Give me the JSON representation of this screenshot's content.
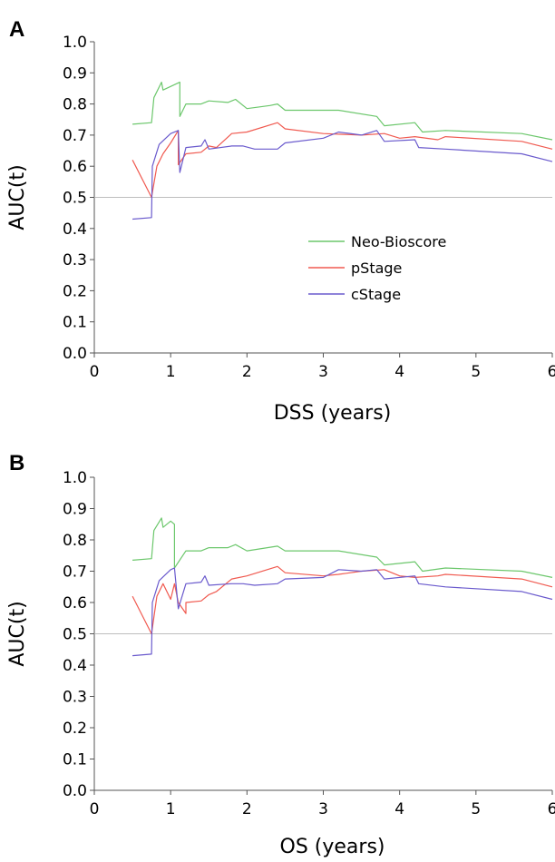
{
  "chart_data": [
    {
      "type": "line",
      "panel_label": "A",
      "xlabel": "DSS (years)",
      "ylabel": "AUC(t)",
      "xlim": [
        0,
        6
      ],
      "ylim": [
        0,
        1
      ],
      "x_ticks": [
        "0",
        "1",
        "2",
        "3",
        "4",
        "5",
        "6"
      ],
      "y_ticks": [
        "0.0",
        "0.1",
        "0.2",
        "0.3",
        "0.4",
        "0.5",
        "0.6",
        "0.7",
        "0.8",
        "0.9",
        "1.0"
      ],
      "reference_line": 0.5,
      "grid": false,
      "legend_position": "right",
      "series": [
        {
          "name": "Neo-Bioscore",
          "color": "#6cc76c",
          "points": [
            [
              0.5,
              0.735
            ],
            [
              0.75,
              0.74
            ],
            [
              0.78,
              0.82
            ],
            [
              0.88,
              0.87
            ],
            [
              0.9,
              0.845
            ],
            [
              1.12,
              0.87
            ],
            [
              1.12,
              0.76
            ],
            [
              1.2,
              0.8
            ],
            [
              1.4,
              0.8
            ],
            [
              1.5,
              0.81
            ],
            [
              1.75,
              0.805
            ],
            [
              1.85,
              0.815
            ],
            [
              2.0,
              0.785
            ],
            [
              2.3,
              0.795
            ],
            [
              2.4,
              0.8
            ],
            [
              2.5,
              0.78
            ],
            [
              3.2,
              0.78
            ],
            [
              3.7,
              0.76
            ],
            [
              3.8,
              0.73
            ],
            [
              4.2,
              0.74
            ],
            [
              4.3,
              0.71
            ],
            [
              4.6,
              0.715
            ],
            [
              5.6,
              0.705
            ],
            [
              6.0,
              0.685
            ]
          ]
        },
        {
          "name": "pStage",
          "color": "#f05a50",
          "points": [
            [
              0.5,
              0.62
            ],
            [
              0.75,
              0.5
            ],
            [
              0.82,
              0.6
            ],
            [
              0.9,
              0.64
            ],
            [
              1.0,
              0.675
            ],
            [
              1.1,
              0.715
            ],
            [
              1.1,
              0.605
            ],
            [
              1.2,
              0.64
            ],
            [
              1.4,
              0.645
            ],
            [
              1.5,
              0.665
            ],
            [
              1.6,
              0.66
            ],
            [
              1.8,
              0.705
            ],
            [
              2.0,
              0.71
            ],
            [
              2.4,
              0.74
            ],
            [
              2.5,
              0.72
            ],
            [
              3.0,
              0.705
            ],
            [
              3.5,
              0.7
            ],
            [
              3.8,
              0.705
            ],
            [
              4.0,
              0.69
            ],
            [
              4.2,
              0.695
            ],
            [
              4.5,
              0.685
            ],
            [
              4.6,
              0.695
            ],
            [
              5.6,
              0.68
            ],
            [
              6.0,
              0.655
            ]
          ]
        },
        {
          "name": "cStage",
          "color": "#6a5acd",
          "points": [
            [
              0.5,
              0.43
            ],
            [
              0.75,
              0.435
            ],
            [
              0.76,
              0.6
            ],
            [
              0.85,
              0.67
            ],
            [
              1.0,
              0.705
            ],
            [
              1.1,
              0.715
            ],
            [
              1.12,
              0.58
            ],
            [
              1.2,
              0.66
            ],
            [
              1.4,
              0.665
            ],
            [
              1.45,
              0.685
            ],
            [
              1.5,
              0.655
            ],
            [
              1.8,
              0.665
            ],
            [
              1.95,
              0.665
            ],
            [
              2.1,
              0.655
            ],
            [
              2.4,
              0.655
            ],
            [
              2.5,
              0.675
            ],
            [
              3.0,
              0.69
            ],
            [
              3.2,
              0.71
            ],
            [
              3.5,
              0.7
            ],
            [
              3.7,
              0.715
            ],
            [
              3.8,
              0.68
            ],
            [
              4.2,
              0.685
            ],
            [
              4.25,
              0.66
            ],
            [
              4.6,
              0.655
            ],
            [
              5.6,
              0.64
            ],
            [
              6.0,
              0.615
            ]
          ]
        }
      ]
    },
    {
      "type": "line",
      "panel_label": "B",
      "xlabel": "OS (years)",
      "ylabel": "AUC(t)",
      "xlim": [
        0,
        6
      ],
      "ylim": [
        0,
        1
      ],
      "x_ticks": [
        "0",
        "1",
        "2",
        "3",
        "4",
        "5",
        "6"
      ],
      "y_ticks": [
        "0.0",
        "0.1",
        "0.2",
        "0.3",
        "0.4",
        "0.5",
        "0.6",
        "0.7",
        "0.8",
        "0.9",
        "1.0"
      ],
      "reference_line": 0.5,
      "grid": false,
      "series": [
        {
          "name": "Neo-Bioscore",
          "color": "#6cc76c",
          "points": [
            [
              0.5,
              0.735
            ],
            [
              0.75,
              0.74
            ],
            [
              0.78,
              0.83
            ],
            [
              0.88,
              0.87
            ],
            [
              0.9,
              0.84
            ],
            [
              1.0,
              0.86
            ],
            [
              1.05,
              0.85
            ],
            [
              1.05,
              0.71
            ],
            [
              1.2,
              0.765
            ],
            [
              1.4,
              0.765
            ],
            [
              1.5,
              0.775
            ],
            [
              1.75,
              0.775
            ],
            [
              1.85,
              0.785
            ],
            [
              2.0,
              0.765
            ],
            [
              2.4,
              0.78
            ],
            [
              2.5,
              0.765
            ],
            [
              3.0,
              0.765
            ],
            [
              3.2,
              0.765
            ],
            [
              3.7,
              0.745
            ],
            [
              3.8,
              0.72
            ],
            [
              4.2,
              0.73
            ],
            [
              4.3,
              0.7
            ],
            [
              4.6,
              0.71
            ],
            [
              5.6,
              0.7
            ],
            [
              6.0,
              0.68
            ]
          ]
        },
        {
          "name": "pStage",
          "color": "#f05a50",
          "points": [
            [
              0.5,
              0.62
            ],
            [
              0.75,
              0.5
            ],
            [
              0.82,
              0.62
            ],
            [
              0.9,
              0.66
            ],
            [
              1.0,
              0.61
            ],
            [
              1.05,
              0.66
            ],
            [
              1.1,
              0.6
            ],
            [
              1.2,
              0.565
            ],
            [
              1.2,
              0.6
            ],
            [
              1.4,
              0.605
            ],
            [
              1.5,
              0.625
            ],
            [
              1.6,
              0.635
            ],
            [
              1.8,
              0.675
            ],
            [
              2.0,
              0.685
            ],
            [
              2.4,
              0.715
            ],
            [
              2.5,
              0.695
            ],
            [
              3.0,
              0.685
            ],
            [
              3.2,
              0.69
            ],
            [
              3.5,
              0.7
            ],
            [
              3.8,
              0.705
            ],
            [
              4.0,
              0.685
            ],
            [
              4.2,
              0.68
            ],
            [
              4.5,
              0.685
            ],
            [
              4.6,
              0.69
            ],
            [
              5.6,
              0.675
            ],
            [
              6.0,
              0.65
            ]
          ]
        },
        {
          "name": "cStage",
          "color": "#6a5acd",
          "points": [
            [
              0.5,
              0.43
            ],
            [
              0.75,
              0.435
            ],
            [
              0.76,
              0.6
            ],
            [
              0.85,
              0.67
            ],
            [
              1.0,
              0.705
            ],
            [
              1.05,
              0.71
            ],
            [
              1.1,
              0.58
            ],
            [
              1.2,
              0.66
            ],
            [
              1.4,
              0.665
            ],
            [
              1.45,
              0.685
            ],
            [
              1.5,
              0.655
            ],
            [
              1.8,
              0.66
            ],
            [
              1.95,
              0.66
            ],
            [
              2.1,
              0.655
            ],
            [
              2.4,
              0.66
            ],
            [
              2.5,
              0.675
            ],
            [
              3.0,
              0.68
            ],
            [
              3.2,
              0.705
            ],
            [
              3.5,
              0.7
            ],
            [
              3.7,
              0.705
            ],
            [
              3.8,
              0.675
            ],
            [
              4.2,
              0.685
            ],
            [
              4.25,
              0.66
            ],
            [
              4.6,
              0.65
            ],
            [
              5.6,
              0.635
            ],
            [
              6.0,
              0.61
            ]
          ]
        }
      ]
    }
  ]
}
